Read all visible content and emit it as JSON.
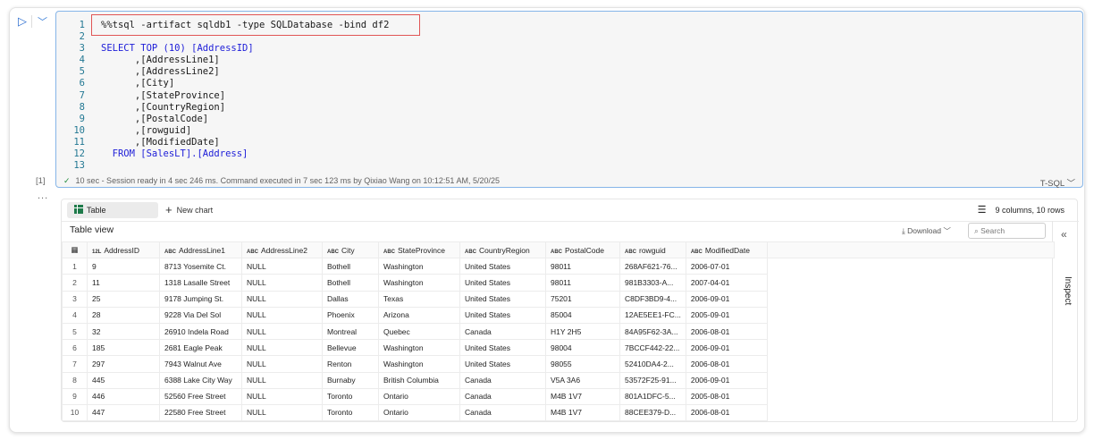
{
  "cell": {
    "exec_count": "[1]",
    "code_lines": [
      "%%tsql -artifact sqldb1 -type SQLDatabase -bind df2",
      "",
      "SELECT TOP (10) [AddressID]",
      "      ,[AddressLine1]",
      "      ,[AddressLine2]",
      "      ,[City]",
      "      ,[StateProvince]",
      "      ,[CountryRegion]",
      "      ,[PostalCode]",
      "      ,[rowguid]",
      "      ,[ModifiedDate]",
      "  FROM [SalesLT].[Address]",
      ""
    ],
    "status": "10 sec - Session ready in 4 sec 246 ms. Command executed in 7 sec 123 ms by Qixiao Wang on 10:12:51 AM, 5/20/25",
    "language": "T-SQL",
    "highlight_color": "#e05555"
  },
  "output": {
    "more": "...",
    "table_tab": "Table",
    "new_chart": "New chart",
    "counts": "9 columns, 10 rows",
    "title": "Table view",
    "download": "Download",
    "search_placeholder": "Search",
    "inspect": "Inspect",
    "columns": [
      {
        "type": "12L",
        "name": "AddressID"
      },
      {
        "type": "ABC",
        "name": "AddressLine1"
      },
      {
        "type": "ABC",
        "name": "AddressLine2"
      },
      {
        "type": "ABC",
        "name": "City"
      },
      {
        "type": "ABC",
        "name": "StateProvince"
      },
      {
        "type": "ABC",
        "name": "CountryRegion"
      },
      {
        "type": "ABC",
        "name": "PostalCode"
      },
      {
        "type": "ABC",
        "name": "rowguid"
      },
      {
        "type": "ABC",
        "name": "ModifiedDate"
      }
    ],
    "rows": [
      [
        "1",
        "9",
        "8713 Yosemite Ct.",
        "NULL",
        "Bothell",
        "Washington",
        "United States",
        "98011",
        "268AF621-76...",
        "2006-07-01"
      ],
      [
        "2",
        "11",
        "1318 Lasalle Street",
        "NULL",
        "Bothell",
        "Washington",
        "United States",
        "98011",
        "981B3303-A...",
        "2007-04-01"
      ],
      [
        "3",
        "25",
        "9178 Jumping St.",
        "NULL",
        "Dallas",
        "Texas",
        "United States",
        "75201",
        "C8DF3BD9-4...",
        "2006-09-01"
      ],
      [
        "4",
        "28",
        "9228 Via Del Sol",
        "NULL",
        "Phoenix",
        "Arizona",
        "United States",
        "85004",
        "12AE5EE1-FC...",
        "2005-09-01"
      ],
      [
        "5",
        "32",
        "26910 Indela Road",
        "NULL",
        "Montreal",
        "Quebec",
        "Canada",
        "H1Y 2H5",
        "84A95F62-3A...",
        "2006-08-01"
      ],
      [
        "6",
        "185",
        "2681 Eagle Peak",
        "NULL",
        "Bellevue",
        "Washington",
        "United States",
        "98004",
        "7BCCF442-22...",
        "2006-09-01"
      ],
      [
        "7",
        "297",
        "7943 Walnut Ave",
        "NULL",
        "Renton",
        "Washington",
        "United States",
        "98055",
        "52410DA4-2...",
        "2006-08-01"
      ],
      [
        "8",
        "445",
        "6388 Lake City Way",
        "NULL",
        "Burnaby",
        "British Columbia",
        "Canada",
        "V5A 3A6",
        "53572F25-91...",
        "2006-09-01"
      ],
      [
        "9",
        "446",
        "52560 Free Street",
        "NULL",
        "Toronto",
        "Ontario",
        "Canada",
        "M4B 1V7",
        "801A1DFC-5...",
        "2005-08-01"
      ],
      [
        "10",
        "447",
        "22580 Free Street",
        "NULL",
        "Toronto",
        "Ontario",
        "Canada",
        "M4B 1V7",
        "88CEE379-D...",
        "2006-08-01"
      ]
    ]
  }
}
